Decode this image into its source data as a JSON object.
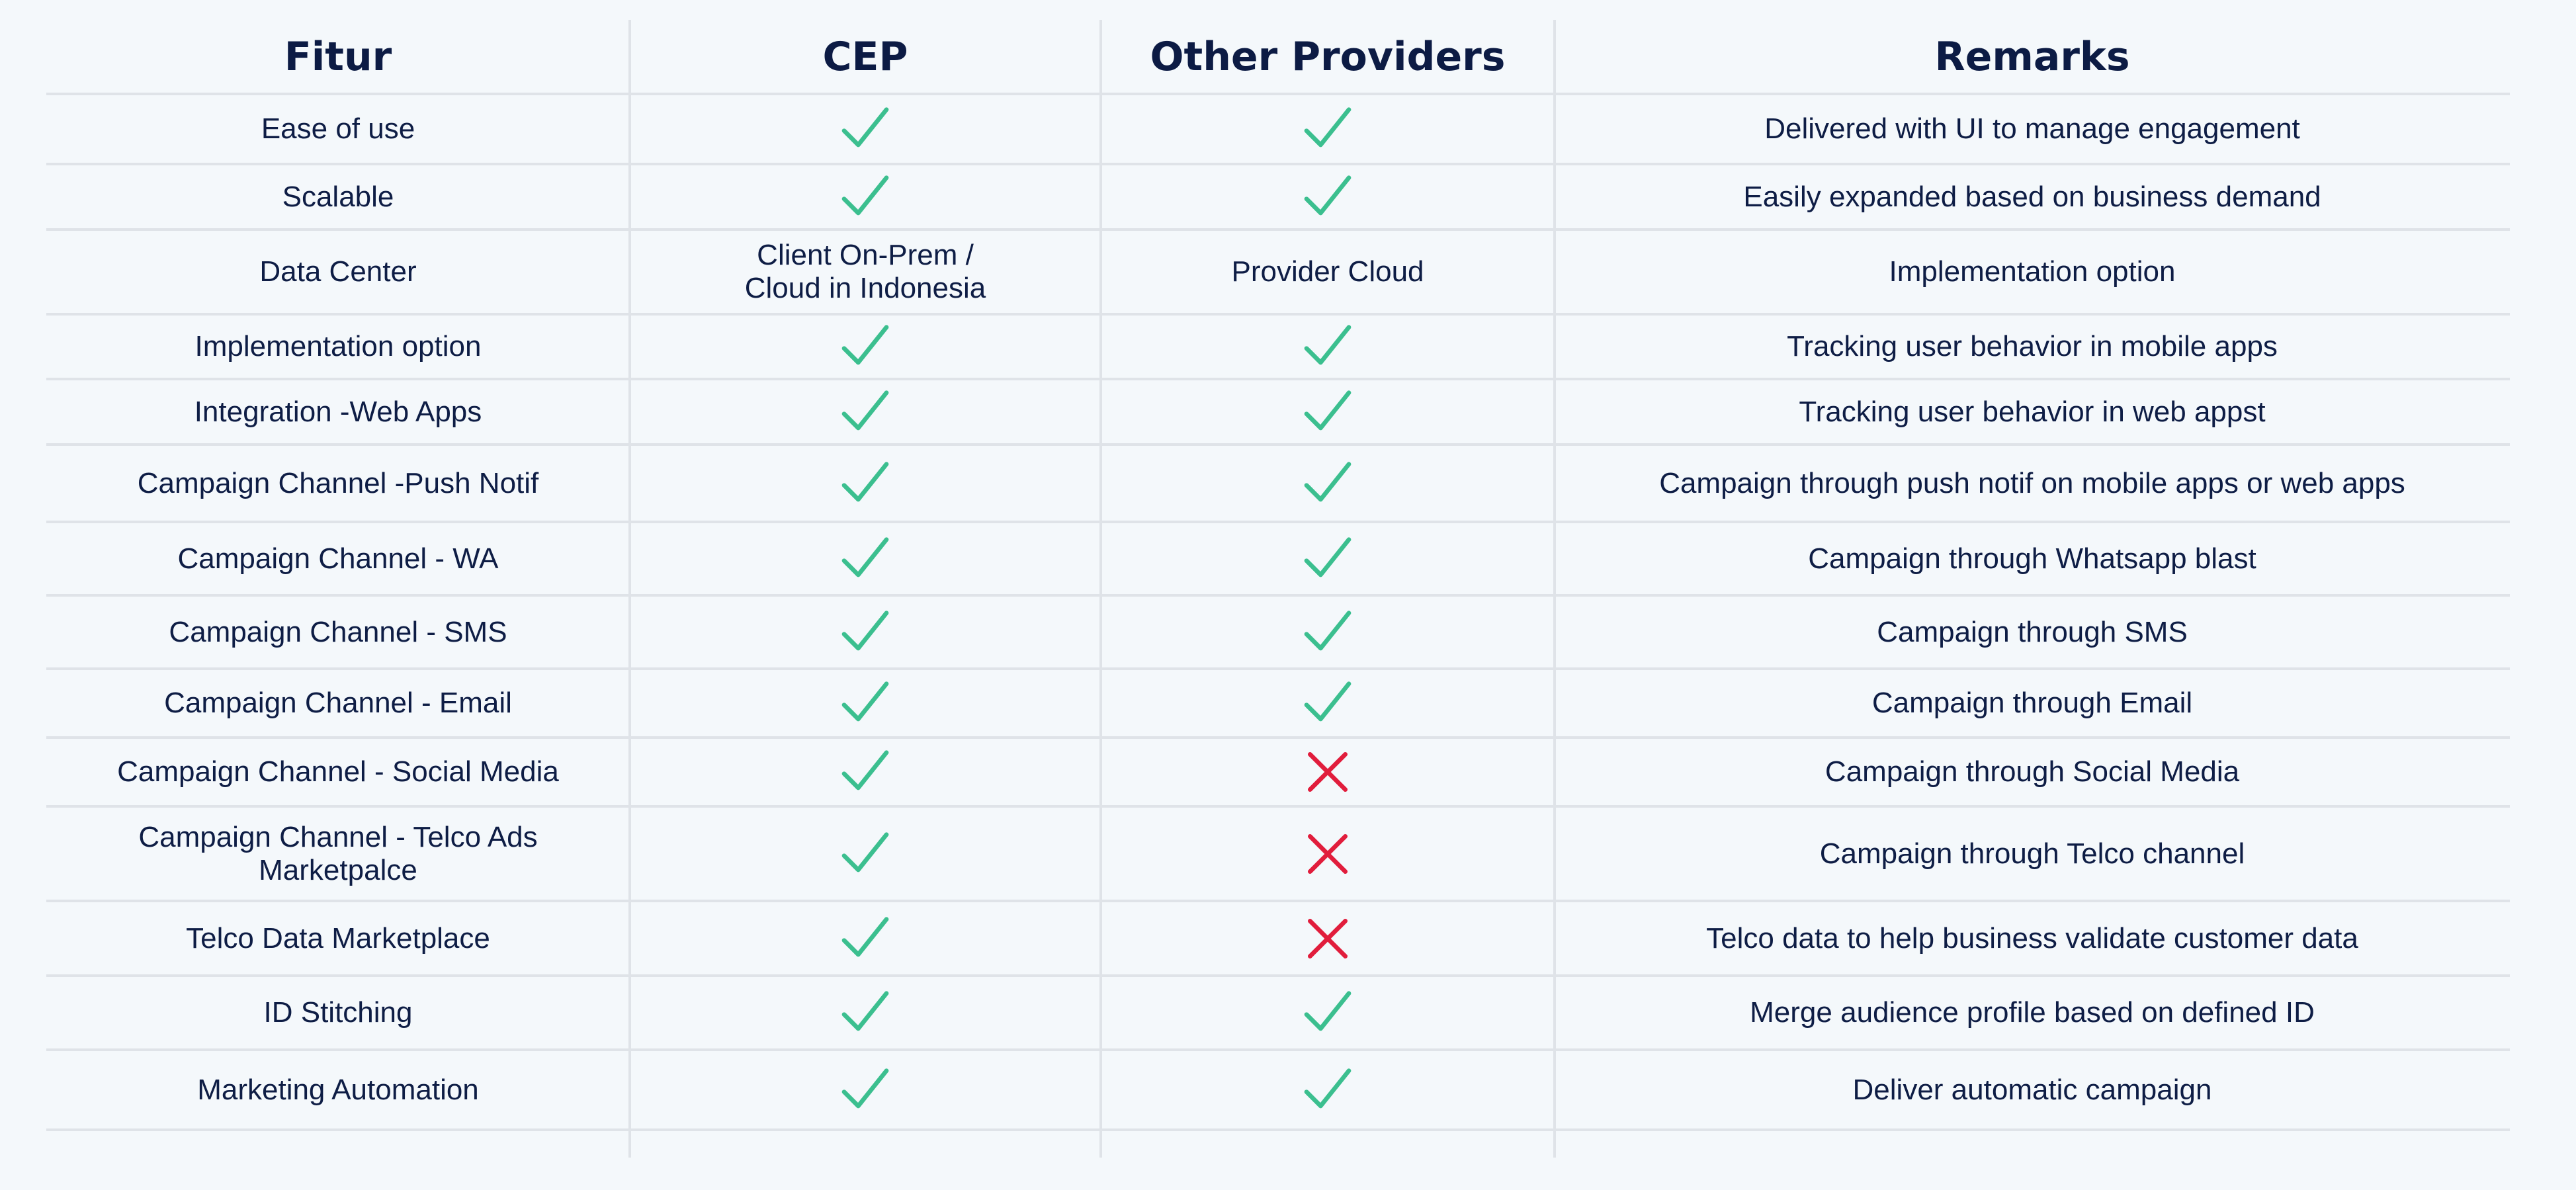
{
  "colors": {
    "background": "#f4f8fb",
    "text": "#0e1d45",
    "check": "#3bbf8f",
    "cross": "#e11d3c",
    "divider": "#dfe3e8"
  },
  "headers": [
    "Fitur",
    "CEP",
    "Other Providers",
    "Remarks"
  ],
  "rows": [
    {
      "feature": "Ease of use",
      "cep": "check",
      "other": "check",
      "remarks": "Delivered with UI to manage engagement"
    },
    {
      "feature": "Scalable",
      "cep": "check",
      "other": "check",
      "remarks": "Easily expanded based on business demand"
    },
    {
      "feature": "Data Center",
      "cep": "Client On-Prem / Cloud in Indonesia",
      "other": "Provider Cloud",
      "remarks": "Implementation option"
    },
    {
      "feature": "Implementation option",
      "cep": "check",
      "other": "check",
      "remarks": "Tracking user behavior in mobile apps"
    },
    {
      "feature": "Integration -Web Apps",
      "cep": "check",
      "other": "check",
      "remarks": "Tracking user behavior in web appst"
    },
    {
      "feature": "Campaign Channel -Push Notif",
      "cep": "check",
      "other": "check",
      "remarks": "Campaign through push notif on mobile apps or web apps"
    },
    {
      "feature": "Campaign Channel - WA",
      "cep": "check",
      "other": "check",
      "remarks": "Campaign through Whatsapp blast"
    },
    {
      "feature": "Campaign Channel - SMS",
      "cep": "check",
      "other": "check",
      "remarks": "Campaign through SMS"
    },
    {
      "feature": "Campaign Channel - Email",
      "cep": "check",
      "other": "check",
      "remarks": "Campaign through Email"
    },
    {
      "feature": "Campaign Channel - Social Media",
      "cep": "check",
      "other": "cross",
      "remarks": "Campaign through Social Media"
    },
    {
      "feature": "Campaign Channel - Telco Ads Marketpalce",
      "cep": "check",
      "other": "cross",
      "remarks": "Campaign through Telco channel"
    },
    {
      "feature": "Telco Data Marketplace",
      "cep": "check",
      "other": "cross",
      "remarks": "Telco data to help business validate customer data"
    },
    {
      "feature": "ID Stitching",
      "cep": "check",
      "other": "check",
      "remarks": "Merge audience profile based on defined ID"
    },
    {
      "feature": "Marketing Automation",
      "cep": "check",
      "other": "check",
      "remarks": "Deliver automatic campaign"
    }
  ]
}
